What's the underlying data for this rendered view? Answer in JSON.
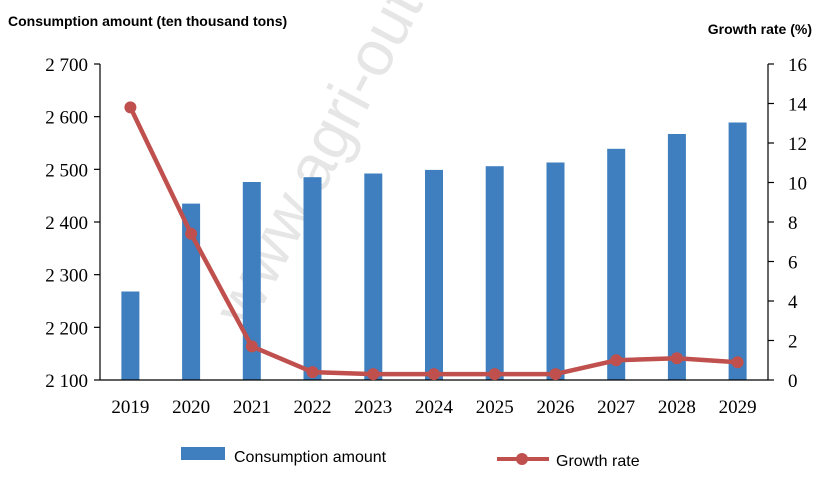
{
  "chart_data": {
    "type": "bar+line",
    "categories": [
      "2019",
      "2020",
      "2021",
      "2022",
      "2023",
      "2024",
      "2025",
      "2026",
      "2027",
      "2028",
      "2029"
    ],
    "series": [
      {
        "name": "Consumption amount",
        "type": "bar",
        "axis": "left",
        "color": "#3f7fbf",
        "values": [
          2268,
          2435,
          2476,
          2485,
          2492,
          2499,
          2506,
          2513,
          2539,
          2567,
          2589
        ]
      },
      {
        "name": "Growth rate",
        "type": "line",
        "axis": "right",
        "color": "#c0504d",
        "values": [
          13.8,
          7.4,
          1.7,
          0.4,
          0.3,
          0.3,
          0.3,
          0.3,
          1.0,
          1.1,
          0.9
        ]
      }
    ],
    "ylabel_left": "Consumption amount (ten thousand tons)",
    "ylabel_right": "Growth rate (%)",
    "ylim_left": [
      2100,
      2700
    ],
    "ylim_right": [
      0,
      16
    ],
    "yticks_left": [
      "2 100",
      "2 200",
      "2 300",
      "2 400",
      "2 500",
      "2 600",
      "2 700"
    ],
    "yticks_right": [
      "0",
      "2",
      "4",
      "6",
      "8",
      "10",
      "12",
      "14",
      "16"
    ],
    "grid": false,
    "legend_position": "bottom"
  },
  "watermark_text": "www.agri-outlook"
}
